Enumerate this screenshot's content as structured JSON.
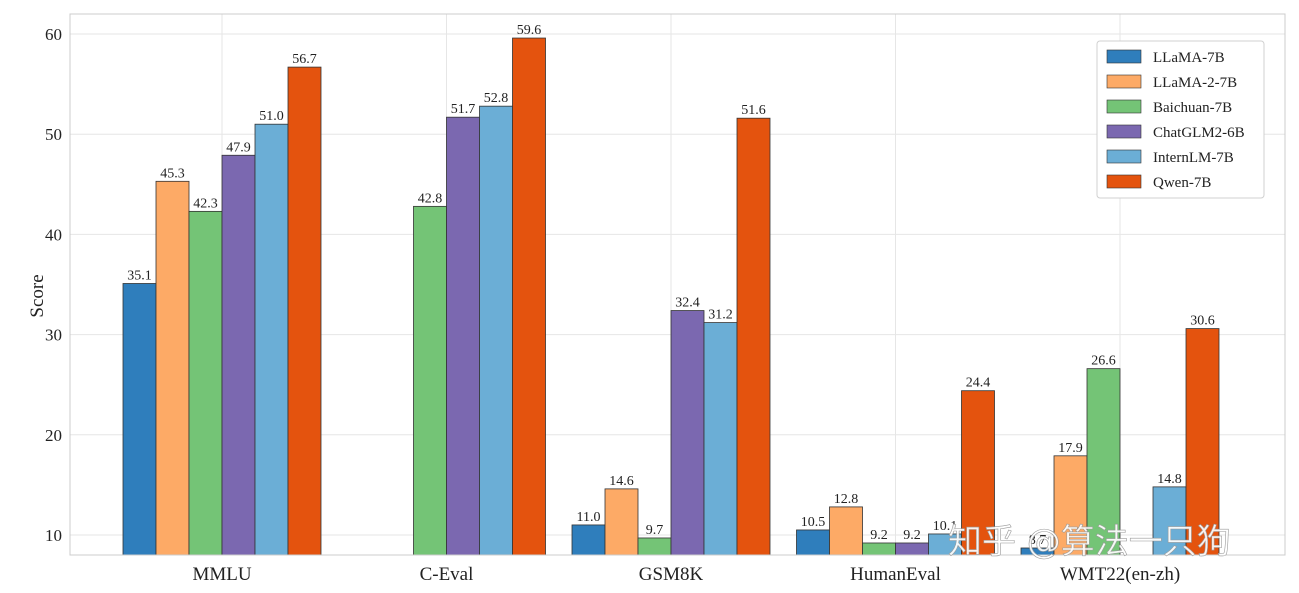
{
  "watermark": "知乎 @算法一只狗",
  "chart_data": {
    "type": "bar",
    "ylabel": "Score",
    "xlabel": "",
    "ylim": [
      8,
      62
    ],
    "yticks": [
      10,
      20,
      30,
      40,
      50,
      60
    ],
    "grid": true,
    "legend_position": "top-right",
    "categories": [
      "MMLU",
      "C-Eval",
      "GSM8K",
      "HumanEval",
      "WMT22(en-zh)"
    ],
    "series": [
      {
        "name": "LLaMA-7B",
        "color": "#2f7ebc",
        "values": [
          35.1,
          null,
          11.0,
          10.5,
          8.7
        ]
      },
      {
        "name": "LLaMA-2-7B",
        "color": "#fdaa66",
        "values": [
          45.3,
          null,
          14.6,
          12.8,
          17.9
        ]
      },
      {
        "name": "Baichuan-7B",
        "color": "#74c476",
        "values": [
          42.3,
          42.8,
          9.7,
          9.2,
          26.6
        ]
      },
      {
        "name": "ChatGLM2-6B",
        "color": "#7b68b0",
        "values": [
          47.9,
          51.7,
          32.4,
          9.2,
          null
        ]
      },
      {
        "name": "InternLM-7B",
        "color": "#6baed6",
        "values": [
          51.0,
          52.8,
          31.2,
          10.1,
          14.8
        ]
      },
      {
        "name": "Qwen-7B",
        "color": "#e4530e",
        "values": [
          56.7,
          59.6,
          51.6,
          24.4,
          30.6
        ]
      }
    ]
  }
}
